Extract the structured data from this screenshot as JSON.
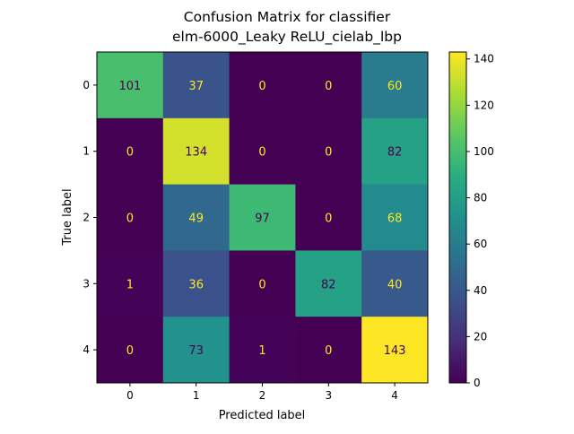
{
  "chart_data": {
    "type": "heatmap",
    "title": "Confusion Matrix for classifier\nelm-6000_Leaky ReLU_cielab_lbp",
    "xlabel": "Predicted label",
    "ylabel": "True label",
    "x_categories": [
      "0",
      "1",
      "2",
      "3",
      "4"
    ],
    "y_categories": [
      "0",
      "1",
      "2",
      "3",
      "4"
    ],
    "values": [
      [
        101,
        37,
        0,
        0,
        60
      ],
      [
        0,
        134,
        0,
        0,
        82
      ],
      [
        0,
        49,
        97,
        0,
        68
      ],
      [
        1,
        36,
        0,
        82,
        40
      ],
      [
        0,
        73,
        1,
        0,
        143
      ]
    ],
    "colormap": "viridis",
    "vmin": 0,
    "vmax": 143,
    "colorbar_ticks": [
      0,
      20,
      40,
      60,
      80,
      100,
      120,
      140
    ],
    "light_text_color": "#fde725",
    "dark_text_color": "#440154"
  }
}
